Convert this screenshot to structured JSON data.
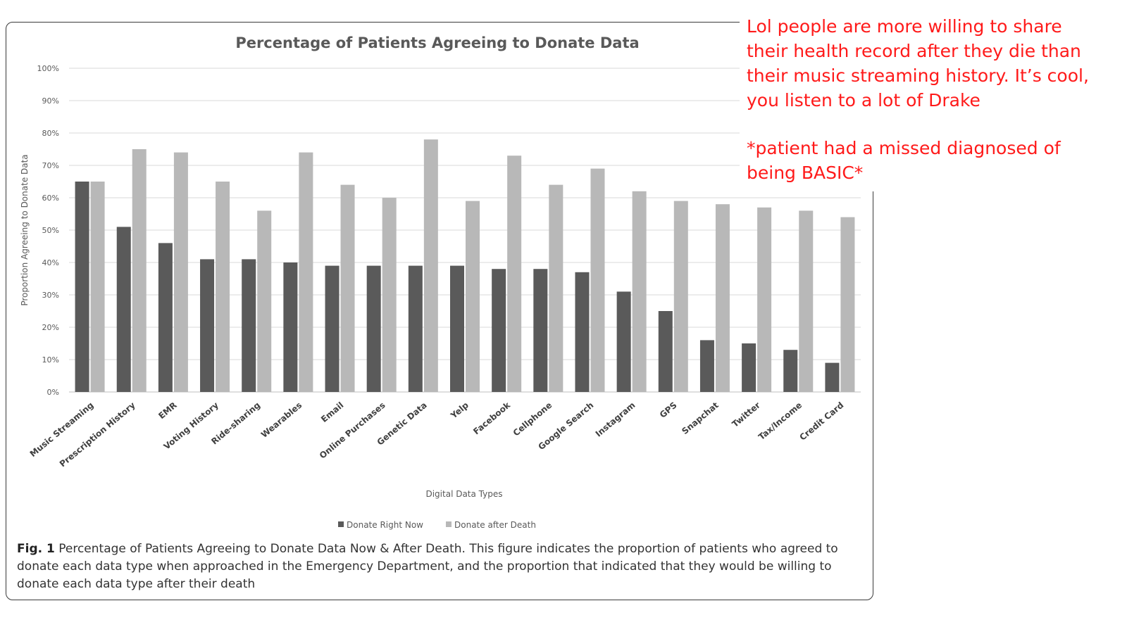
{
  "annotation": {
    "line1": "Lol people are more willing to share",
    "line2": "their health record after they die than",
    "line3": "their music streaming history.  It’s cool,",
    "line4": "you listen to a lot of Drake",
    "line5": "*patient had a missed diagnosed of",
    "line6": "being BASIC*"
  },
  "caption": {
    "label": "Fig. 1",
    "text": " Percentage of Patients Agreeing to Donate Data Now & After Death. This figure indicates the proportion of patients who agreed to donate each data type when approached in the Emergency Department, and the proportion that indicated that they would be willing to donate each data type after their death"
  },
  "colors": {
    "donate_now": "#5a5a5a",
    "donate_after": "#b8b8b8",
    "grid": "#d9d9d9",
    "annotation": "#ff1a1a"
  },
  "chart_data": {
    "type": "bar",
    "title": "Percentage of Patients Agreeing to Donate Data",
    "xlabel": "Digital Data Types",
    "ylabel": "Proportion Agreeing to Donate Data",
    "ylim": [
      0,
      100
    ],
    "yticks": [
      "0%",
      "10%",
      "20%",
      "30%",
      "40%",
      "50%",
      "60%",
      "70%",
      "80%",
      "90%",
      "100%"
    ],
    "grid": true,
    "legend_position": "bottom",
    "categories": [
      "Music Streaming",
      "Prescription History",
      "EMR",
      "Voting History",
      "Ride-sharing",
      "Wearables",
      "Email",
      "Online Purchases",
      "Genetic Data",
      "Yelp",
      "Facebook",
      "Cellphone",
      "Google Search",
      "Instagram",
      "GPS",
      "Snapchat",
      "Twitter",
      "Tax/Income",
      "Credit Card"
    ],
    "series": [
      {
        "name": "Donate Right Now",
        "values": [
          65,
          51,
          46,
          41,
          41,
          40,
          39,
          39,
          39,
          39,
          38,
          38,
          37,
          31,
          25,
          16,
          15,
          13,
          9
        ]
      },
      {
        "name": "Donate after Death",
        "values": [
          65,
          75,
          74,
          65,
          56,
          74,
          64,
          60,
          78,
          59,
          73,
          64,
          69,
          62,
          59,
          58,
          57,
          56,
          54
        ]
      }
    ]
  }
}
